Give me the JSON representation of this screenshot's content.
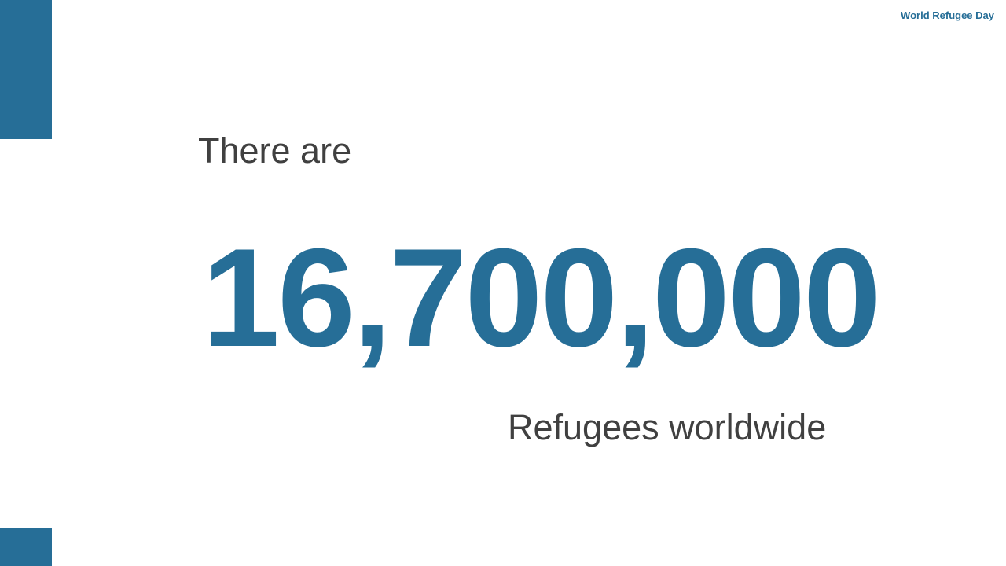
{
  "header": {
    "label": "World Refugee Day"
  },
  "slide": {
    "intro": "There are",
    "number": "16,700,000",
    "outro": "Refugees worldwide"
  },
  "colors": {
    "accent": "#266e97",
    "text": "#404040",
    "background": "#ffffff"
  }
}
